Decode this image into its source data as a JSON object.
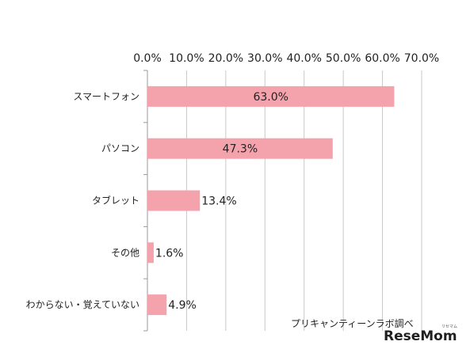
{
  "chart_data": {
    "type": "bar",
    "orientation": "horizontal",
    "categories": [
      "スマートフォン",
      "パソコン",
      "タブレット",
      "その他",
      "わからない・覚えていない"
    ],
    "values": [
      63.0,
      47.3,
      13.4,
      1.6,
      4.9
    ],
    "data_labels": [
      "63.0%",
      "47.3%",
      "13.4%",
      "1.6%",
      "4.9%"
    ],
    "x_ticks": [
      "0.0%",
      "10.0%",
      "20.0%",
      "30.0%",
      "40.0%",
      "50.0%",
      "60.0%",
      "70.0%"
    ],
    "xlim": [
      0,
      70
    ],
    "x_axis_position": "top",
    "grid": true,
    "bar_color": "#f4a3ad",
    "source_note": "プリキャンティーンラボ調べ"
  },
  "logo": {
    "text": "ReseMom",
    "subtext": "リセマム"
  }
}
